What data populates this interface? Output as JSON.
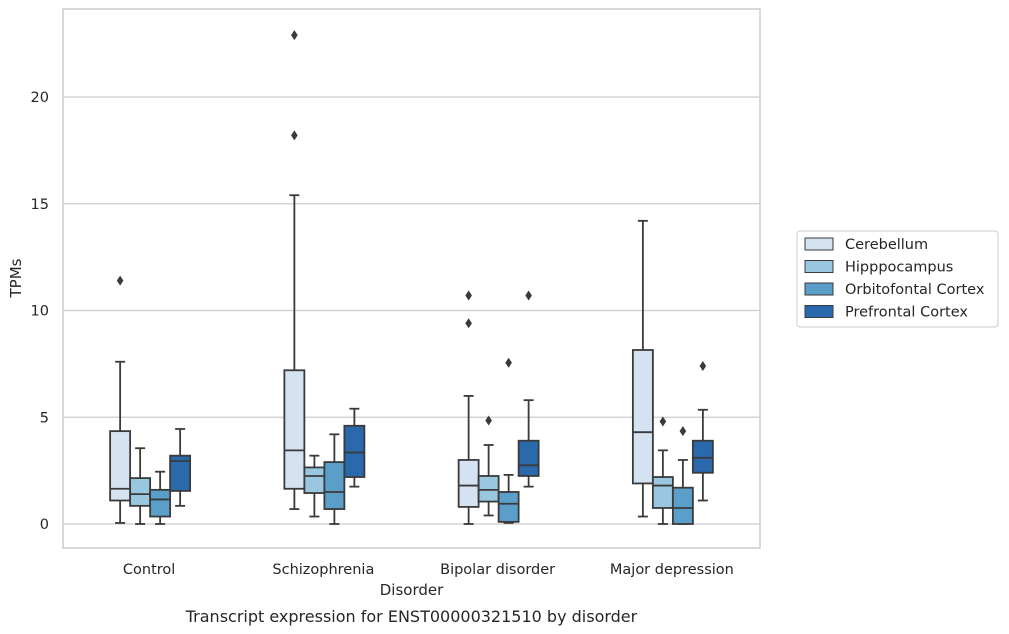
{
  "chart_data": {
    "type": "box",
    "title": "",
    "caption": "Transcript expression for ENST00000321510 by disorder",
    "xlabel": "Disorder",
    "ylabel": "TPMs",
    "ylim": [
      -1.1,
      24.2
    ],
    "yticks": [
      0,
      5,
      10,
      15,
      20
    ],
    "grid": "horizontal",
    "legend_position": "right",
    "categories": [
      "Control",
      "Schizophrenia",
      "Bipolar disorder",
      "Major depression"
    ],
    "series": [
      {
        "name": "Cerebellum",
        "color": "#d4e2f1",
        "boxes": [
          {
            "whisker_low": 0.05,
            "q1": 1.1,
            "median": 1.65,
            "q3": 4.35,
            "whisker_high": 7.6,
            "outliers": [
              11.4
            ]
          },
          {
            "whisker_low": 0.7,
            "q1": 1.65,
            "median": 3.45,
            "q3": 7.2,
            "whisker_high": 15.4,
            "outliers": [
              18.2,
              22.9
            ]
          },
          {
            "whisker_low": 0.0,
            "q1": 0.8,
            "median": 1.8,
            "q3": 3.0,
            "whisker_high": 6.0,
            "outliers": [
              9.4,
              10.7
            ]
          },
          {
            "whisker_low": 0.35,
            "q1": 1.9,
            "median": 4.3,
            "q3": 8.15,
            "whisker_high": 14.2,
            "outliers": []
          }
        ]
      },
      {
        "name": "Hipppocampus",
        "color": "#9ac7e0",
        "boxes": [
          {
            "whisker_low": 0.0,
            "q1": 0.85,
            "median": 1.4,
            "q3": 2.15,
            "whisker_high": 3.55,
            "outliers": []
          },
          {
            "whisker_low": 0.35,
            "q1": 1.45,
            "median": 2.25,
            "q3": 2.65,
            "whisker_high": 3.2,
            "outliers": []
          },
          {
            "whisker_low": 0.4,
            "q1": 1.05,
            "median": 1.6,
            "q3": 2.25,
            "whisker_high": 3.7,
            "outliers": [
              4.85
            ]
          },
          {
            "whisker_low": 0.0,
            "q1": 0.75,
            "median": 1.8,
            "q3": 2.2,
            "whisker_high": 3.45,
            "outliers": [
              4.8
            ]
          }
        ]
      },
      {
        "name": "Orbitofontal Cortex",
        "color": "#5b9ec9",
        "boxes": [
          {
            "whisker_low": 0.0,
            "q1": 0.35,
            "median": 1.15,
            "q3": 1.6,
            "whisker_high": 2.45,
            "outliers": []
          },
          {
            "whisker_low": 0.0,
            "q1": 0.7,
            "median": 1.5,
            "q3": 2.9,
            "whisker_high": 4.2,
            "outliers": []
          },
          {
            "whisker_low": 0.05,
            "q1": 0.1,
            "median": 0.95,
            "q3": 1.5,
            "whisker_high": 2.3,
            "outliers": [
              7.55
            ]
          },
          {
            "whisker_low": 0.0,
            "q1": 0.0,
            "median": 0.75,
            "q3": 1.7,
            "whisker_high": 3.0,
            "outliers": [
              4.35
            ]
          }
        ]
      },
      {
        "name": "Prefrontal Cortex",
        "color": "#2a69ac",
        "boxes": [
          {
            "whisker_low": 0.85,
            "q1": 1.55,
            "median": 2.95,
            "q3": 3.2,
            "whisker_high": 4.45,
            "outliers": []
          },
          {
            "whisker_low": 1.75,
            "q1": 2.2,
            "median": 3.35,
            "q3": 4.6,
            "whisker_high": 5.4,
            "outliers": []
          },
          {
            "whisker_low": 1.75,
            "q1": 2.25,
            "median": 2.75,
            "q3": 3.9,
            "whisker_high": 5.8,
            "outliers": [
              10.7
            ]
          },
          {
            "whisker_low": 1.1,
            "q1": 2.4,
            "median": 3.1,
            "q3": 3.9,
            "whisker_high": 5.35,
            "outliers": [
              7.4
            ]
          }
        ]
      }
    ]
  }
}
